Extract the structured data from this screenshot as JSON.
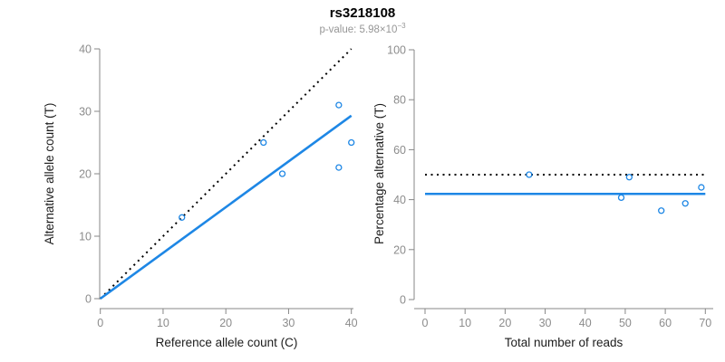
{
  "header": {
    "title": "rs3218108",
    "p_value_prefix": "p-value: 5.98×10",
    "p_value_exponent": "−3"
  },
  "colors": {
    "point": "#1e87e5",
    "fit_line": "#1e87e5",
    "reference_line": "#000000",
    "axis": "#878787",
    "tick_label": "#8c8c8c",
    "axis_title": "#1c1c1c",
    "title": "#000000",
    "subtitle": "#969696"
  },
  "chart_data": [
    {
      "type": "scatter",
      "name": "allele-counts",
      "xlabel": "Reference allele count (C)",
      "ylabel": "Alternative allele count (T)",
      "xlim": [
        0,
        40
      ],
      "ylim": [
        0,
        40
      ],
      "xticks": [
        0,
        10,
        20,
        30,
        40
      ],
      "yticks": [
        0,
        10,
        20,
        30,
        40
      ],
      "grid": false,
      "points": [
        [
          13,
          13
        ],
        [
          26,
          25
        ],
        [
          29,
          20
        ],
        [
          38,
          21
        ],
        [
          38,
          31
        ],
        [
          40,
          25
        ]
      ],
      "lines": [
        {
          "name": "identity-line",
          "style": "dotted",
          "x1": 0,
          "y1": 0,
          "x2": 40,
          "y2": 40
        },
        {
          "name": "fit-line",
          "style": "solid",
          "x1": 0,
          "y1": 0,
          "x2": 40,
          "y2": 29.3
        }
      ]
    },
    {
      "type": "scatter",
      "name": "percentage-by-reads",
      "xlabel": "Total number of reads",
      "ylabel": "Percentage alternative (T)",
      "xlim": [
        0,
        70
      ],
      "ylim": [
        0,
        100
      ],
      "xticks": [
        0,
        10,
        20,
        30,
        40,
        50,
        60,
        70
      ],
      "yticks": [
        0,
        20,
        40,
        60,
        80,
        100
      ],
      "grid": false,
      "points": [
        [
          26,
          50
        ],
        [
          49,
          40.8
        ],
        [
          51,
          49
        ],
        [
          59,
          35.6
        ],
        [
          65,
          38.5
        ],
        [
          69,
          44.9
        ]
      ],
      "lines": [
        {
          "name": "expected-50pct-line",
          "style": "dotted",
          "x1": 0,
          "y1": 50,
          "x2": 70,
          "y2": 50
        },
        {
          "name": "fit-line",
          "style": "solid",
          "x1": 0,
          "y1": 42.3,
          "x2": 70,
          "y2": 42.3
        }
      ]
    }
  ]
}
